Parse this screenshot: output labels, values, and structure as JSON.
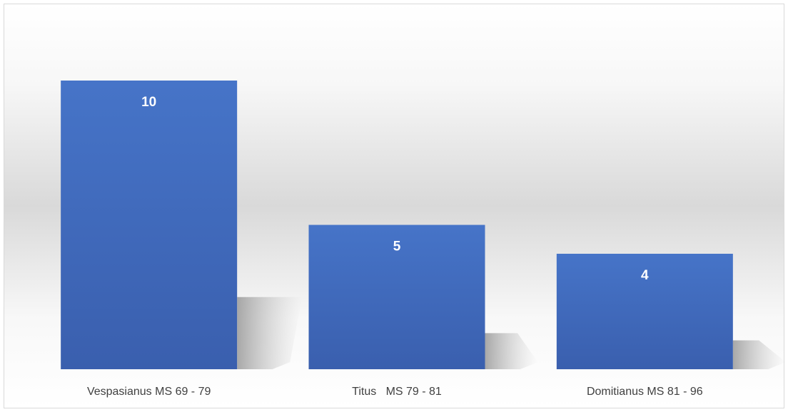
{
  "chart_data": {
    "type": "bar",
    "categories": [
      "Vespasianus MS 69 - 79",
      "Titus   MS 79 - 81",
      "Domitianus MS 81 - 96"
    ],
    "values": [
      10,
      5,
      4
    ],
    "color": "#4472c4"
  }
}
